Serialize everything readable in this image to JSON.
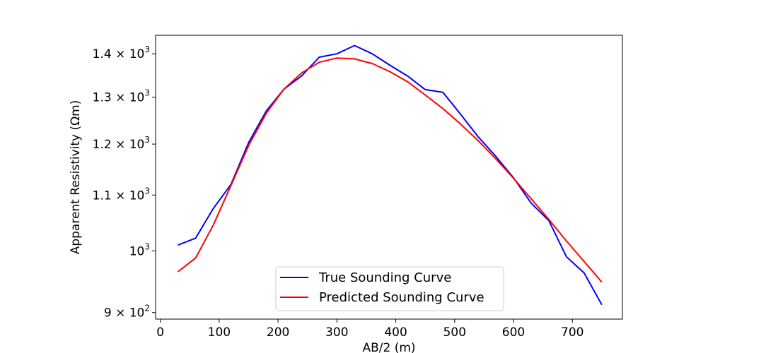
{
  "chart_data": {
    "type": "line",
    "title": "",
    "xlabel": "AB/2 (m)",
    "ylabel": "Apparent Resistivity (Ωm)",
    "yscale": "log",
    "xlim": [
      -8,
      785
    ],
    "ylim": [
      890,
      1445
    ],
    "xticks": [
      0,
      100,
      200,
      300,
      400,
      500,
      600,
      700
    ],
    "xtick_labels": [
      "0",
      "100",
      "200",
      "300",
      "400",
      "500",
      "600",
      "700"
    ],
    "yticks": [
      900,
      1000,
      1100,
      1200,
      1300,
      1400
    ],
    "ytick_labels": [
      {
        "mantissa": "9",
        "exponent": "2"
      },
      {
        "mantissa": "",
        "exponent": "3"
      },
      {
        "mantissa": "1.1",
        "exponent": "3"
      },
      {
        "mantissa": "1.2",
        "exponent": "3"
      },
      {
        "mantissa": "1.3",
        "exponent": "3"
      },
      {
        "mantissa": "1.4",
        "exponent": "3"
      }
    ],
    "grid": false,
    "legend_position": "lower-center",
    "x": [
      30,
      60,
      90,
      120,
      150,
      180,
      210,
      240,
      270,
      300,
      330,
      360,
      390,
      420,
      450,
      480,
      510,
      540,
      570,
      600,
      630,
      660,
      690,
      720,
      750
    ],
    "series": [
      {
        "name": "True Sounding Curve",
        "color": "#0000ff",
        "values": [
          1010,
          1022,
          1075,
          1120,
          1203,
          1270,
          1318,
          1348,
          1392,
          1400,
          1420,
          1400,
          1373,
          1348,
          1317,
          1311,
          1263,
          1215,
          1175,
          1133,
          1085,
          1053,
          990,
          963,
          912
        ]
      },
      {
        "name": "Predicted Sounding Curve",
        "color": "#ff0000",
        "values": [
          965,
          988,
          1045,
          1118,
          1197,
          1265,
          1318,
          1355,
          1380,
          1390,
          1388,
          1377,
          1358,
          1335,
          1305,
          1275,
          1242,
          1207,
          1170,
          1132,
          1093,
          1055,
          1017,
          982,
          948
        ]
      }
    ]
  }
}
